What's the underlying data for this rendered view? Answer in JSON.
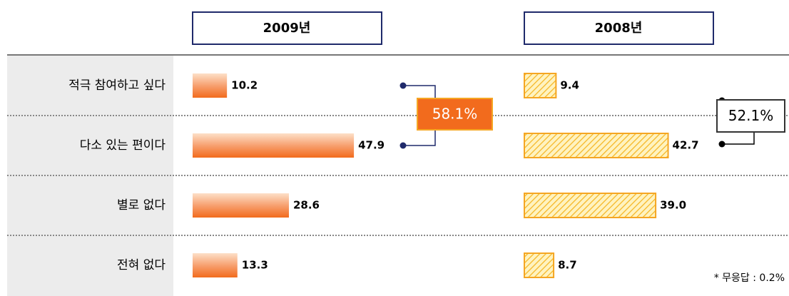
{
  "chart_data": {
    "type": "bar",
    "categories": [
      "적극 참여하고 싶다",
      "다소 있는 편이다",
      "별로 없다",
      "전혀 없다"
    ],
    "series": [
      {
        "name": "2009년",
        "color": "#f26b1d",
        "values": [
          10.2,
          47.9,
          28.6,
          13.3
        ],
        "value_labels": [
          "10.2",
          "47.9",
          "28.6",
          "13.3"
        ],
        "total": 58.1,
        "total_label": "58.1%"
      },
      {
        "name": "2008년",
        "color": "#f5a623",
        "values": [
          9.4,
          42.7,
          39.0,
          8.7
        ],
        "value_labels": [
          "9.4",
          "42.7",
          "39.0",
          "8.7"
        ],
        "total": 52.1,
        "total_label": "52.1%"
      }
    ],
    "note": "* 무응답 : 0.2%"
  }
}
